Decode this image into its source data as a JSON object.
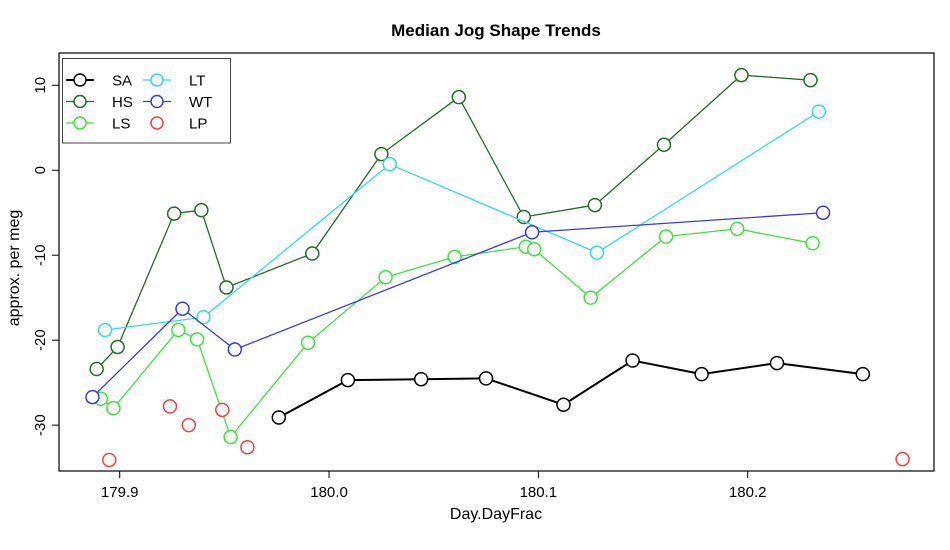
{
  "chart_data": {
    "type": "line",
    "title": "Median Jog Shape Trends",
    "xlabel": "Day.DayFrac",
    "ylabel": "approx. per meg",
    "xlim": [
      179.871,
      180.289
    ],
    "ylim": [
      -35.4,
      13.8
    ],
    "x_ticks": [
      179.9,
      180.0,
      180.1,
      180.2
    ],
    "x_tick_labels": [
      "179.9",
      "180.0",
      "180.1",
      "180.2"
    ],
    "y_ticks": [
      10,
      0,
      -10,
      -20,
      -30
    ],
    "y_tick_labels": [
      "10",
      "0",
      "-10",
      "-20",
      "-30"
    ],
    "grid": false,
    "legend_position": "top-left",
    "legend": {
      "col1": [
        "SA",
        "HS",
        "LS"
      ],
      "col2": [
        "LT",
        "WT",
        "LP"
      ]
    },
    "series": [
      {
        "name": "SA",
        "color": "#000000",
        "line": true,
        "line_width": 2,
        "x": [
          179.976,
          180.009,
          180.044,
          180.075,
          180.112,
          180.145,
          180.178,
          180.214,
          180.255
        ],
        "y": [
          -29.1,
          -24.7,
          -24.6,
          -24.5,
          -27.6,
          -22.4,
          -24.0,
          -22.7,
          -24.0
        ]
      },
      {
        "name": "HS",
        "color": "#246b24",
        "line": true,
        "line_width": 1.3,
        "x": [
          179.889,
          179.899,
          179.926,
          179.939,
          179.951,
          179.992,
          180.025,
          180.062,
          180.093,
          180.127,
          180.16,
          180.197,
          180.23
        ],
        "y": [
          -23.4,
          -20.8,
          -5.1,
          -4.7,
          -13.8,
          -9.8,
          1.9,
          8.6,
          -5.5,
          -4.1,
          3.0,
          11.2,
          10.6
        ]
      },
      {
        "name": "LS",
        "color": "#39e639",
        "line": true,
        "line_width": 1.3,
        "x": [
          179.891,
          179.897,
          179.928,
          179.937,
          179.953,
          179.99,
          180.027,
          180.06,
          180.094,
          180.098,
          180.125,
          180.161,
          180.195,
          180.231
        ],
        "y": [
          -26.9,
          -28.0,
          -18.8,
          -19.9,
          -31.4,
          -20.3,
          -12.6,
          -10.2,
          -9.0,
          -9.3,
          -15.0,
          -7.8,
          -6.9,
          -8.6
        ]
      },
      {
        "name": "LT",
        "color": "#2edbec",
        "line": true,
        "line_width": 1.3,
        "x": [
          179.893,
          179.94,
          180.029,
          180.128,
          180.234
        ],
        "y": [
          -18.8,
          -17.3,
          0.7,
          -9.7,
          6.9
        ]
      },
      {
        "name": "WT",
        "color": "#3838f0",
        "line": true,
        "line_width": 1.3,
        "x": [
          179.887,
          179.93,
          179.955,
          180.097,
          180.236
        ],
        "y": [
          -26.7,
          -16.3,
          -21.1,
          -7.3,
          -5.0
        ]
      },
      {
        "name": "LP",
        "color": "#ff3b3b",
        "line": false,
        "line_width": 1.3,
        "x": [
          179.895,
          179.924,
          179.933,
          179.949,
          179.961,
          180.274
        ],
        "y": [
          -34.1,
          -27.8,
          -30.0,
          -28.2,
          -32.6,
          -34.0
        ]
      }
    ]
  }
}
